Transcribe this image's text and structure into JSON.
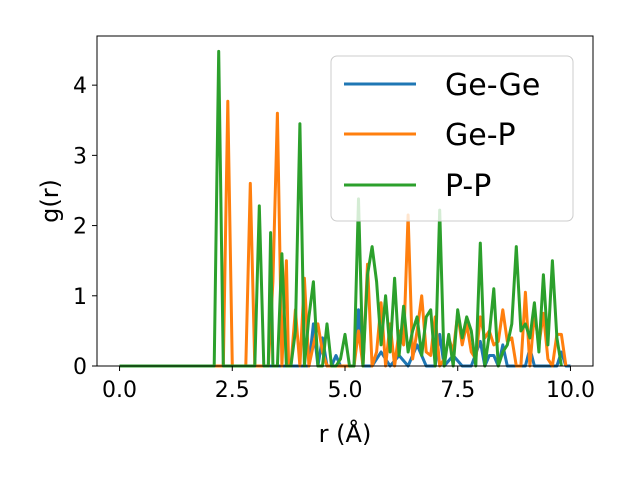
{
  "chart_data": {
    "type": "line",
    "xlabel": "r (Å)",
    "ylabel": "g(r)",
    "xlim": [
      -0.5,
      10.5
    ],
    "ylim": [
      0,
      4.7
    ],
    "xticks": [
      "0.0",
      "2.5",
      "5.0",
      "7.5",
      "10.0"
    ],
    "xtick_values": [
      0,
      2.5,
      5,
      7.5,
      10
    ],
    "yticks": [
      "0",
      "1",
      "2",
      "3",
      "4"
    ],
    "ytick_values": [
      0,
      1,
      2,
      3,
      4
    ],
    "grid": false,
    "legend_position": "top-right",
    "series": [
      {
        "name": "Ge-Ge",
        "color": "#1f77b4",
        "x": [
          0,
          0.5,
          1,
          1.5,
          2,
          2.5,
          3,
          3.5,
          4,
          4.2,
          4.3,
          4.4,
          4.5,
          4.6,
          4.7,
          4.8,
          4.9,
          5,
          5.2,
          5.3,
          5.4,
          5.5,
          5.6,
          5.8,
          6,
          6.2,
          6.4,
          6.6,
          6.8,
          7,
          7.1,
          7.2,
          7.4,
          7.6,
          7.8,
          8,
          8.1,
          8.2,
          8.3,
          8.4,
          8.5,
          8.6,
          8.7,
          8.8,
          8.9,
          9,
          9.1,
          9.2,
          9.3,
          9.4,
          9.5,
          9.6,
          9.7,
          9.8,
          9.9,
          10
        ],
        "y": [
          0,
          0,
          0,
          0,
          0,
          0,
          0,
          0,
          0,
          0,
          0.6,
          0,
          0.4,
          0,
          0,
          0.15,
          0,
          0,
          0,
          0.8,
          0,
          0,
          0,
          0.2,
          0,
          0.15,
          0,
          0.3,
          0,
          0,
          0.45,
          0,
          0.15,
          0,
          0,
          0.35,
          0,
          0.15,
          0.15,
          0,
          0.3,
          0,
          0,
          0,
          0,
          0,
          0.25,
          0,
          0,
          0,
          0,
          0,
          0,
          0.2,
          0,
          0
        ]
      },
      {
        "name": "Ge-P",
        "color": "#ff7f0e",
        "x": [
          0,
          0.5,
          1,
          1.5,
          2,
          2.3,
          2.4,
          2.5,
          2.8,
          2.9,
          3,
          3.3,
          3.4,
          3.5,
          3.6,
          3.7,
          3.75,
          3.8,
          3.9,
          4,
          4.1,
          4.2,
          4.3,
          4.4,
          4.5,
          4.6,
          4.7,
          4.8,
          4.9,
          5,
          5.1,
          5.2,
          5.3,
          5.4,
          5.5,
          5.6,
          5.7,
          5.8,
          5.9,
          6,
          6.1,
          6.2,
          6.3,
          6.4,
          6.5,
          6.6,
          6.7,
          6.8,
          6.9,
          7,
          7.1,
          7.2,
          7.3,
          7.4,
          7.5,
          7.6,
          7.7,
          7.8,
          7.9,
          8,
          8.1,
          8.2,
          8.3,
          8.4,
          8.5,
          8.6,
          8.7,
          8.8,
          8.9,
          9,
          9.1,
          9.2,
          9.3,
          9.4,
          9.5,
          9.6,
          9.7,
          9.8,
          9.9
        ],
        "y": [
          0,
          0,
          0,
          0,
          0,
          0,
          3.77,
          0,
          0,
          2.6,
          0,
          0,
          1.2,
          3.6,
          0,
          1.5,
          0,
          0,
          0.8,
          0,
          1.25,
          0,
          0.3,
          0.6,
          0.2,
          0,
          0,
          0,
          0,
          0,
          0,
          0,
          0.5,
          0,
          1.45,
          0,
          0.2,
          0.9,
          0,
          0.6,
          0,
          0.5,
          0.3,
          2.15,
          0.1,
          0.5,
          1,
          0.2,
          0.15,
          0.7,
          0,
          0.1,
          0.4,
          0.2,
          0.75,
          0.3,
          0.6,
          0.2,
          0.1,
          0.7,
          0.4,
          0.5,
          0.3,
          0.35,
          0.8,
          0.35,
          0.4,
          0,
          0,
          1.05,
          0,
          0.75,
          0.3,
          0.75,
          0.1,
          0,
          0.45,
          0.45,
          0
        ]
      },
      {
        "name": "P-P",
        "color": "#2ca02c",
        "x": [
          0,
          0.5,
          1,
          1.5,
          2,
          2.1,
          2.2,
          2.3,
          2.6,
          2.7,
          2.9,
          3,
          3.1,
          3.2,
          3.3,
          3.35,
          3.4,
          3.5,
          3.6,
          3.7,
          3.8,
          3.9,
          4,
          4.1,
          4.2,
          4.3,
          4.4,
          4.5,
          4.6,
          4.7,
          4.8,
          4.9,
          5,
          5.1,
          5.2,
          5.3,
          5.4,
          5.5,
          5.6,
          5.7,
          5.8,
          5.9,
          6,
          6.1,
          6.2,
          6.3,
          6.4,
          6.5,
          6.6,
          6.7,
          6.8,
          6.9,
          7,
          7.1,
          7.2,
          7.3,
          7.4,
          7.5,
          7.6,
          7.7,
          7.8,
          7.9,
          8,
          8.1,
          8.2,
          8.3,
          8.4,
          8.5,
          8.6,
          8.7,
          8.8,
          8.9,
          9,
          9.1,
          9.2,
          9.3,
          9.4,
          9.5,
          9.6,
          9.7,
          9.8
        ],
        "y": [
          0,
          0,
          0,
          0,
          0,
          0,
          4.48,
          0,
          0,
          0,
          0,
          0,
          2.28,
          0,
          0,
          1.9,
          0,
          0,
          1.6,
          0,
          0,
          0.5,
          3.45,
          0,
          0.7,
          1.2,
          0,
          0,
          0.6,
          0,
          0,
          0.1,
          0.45,
          0,
          0,
          2.38,
          0,
          1.3,
          1.7,
          1.2,
          0.3,
          1,
          0.2,
          1.25,
          0.15,
          0.85,
          0.2,
          0.5,
          0.7,
          0.15,
          0.7,
          0.8,
          0,
          2.22,
          0,
          0.45,
          0,
          0.8,
          0.4,
          0.7,
          0.5,
          0,
          1.75,
          0,
          0.45,
          1.1,
          0,
          0.2,
          0.3,
          0.6,
          1.7,
          0.5,
          0.6,
          0.4,
          0.9,
          0.2,
          1.3,
          0.3,
          1.5,
          0.4,
          0
        ]
      }
    ]
  }
}
